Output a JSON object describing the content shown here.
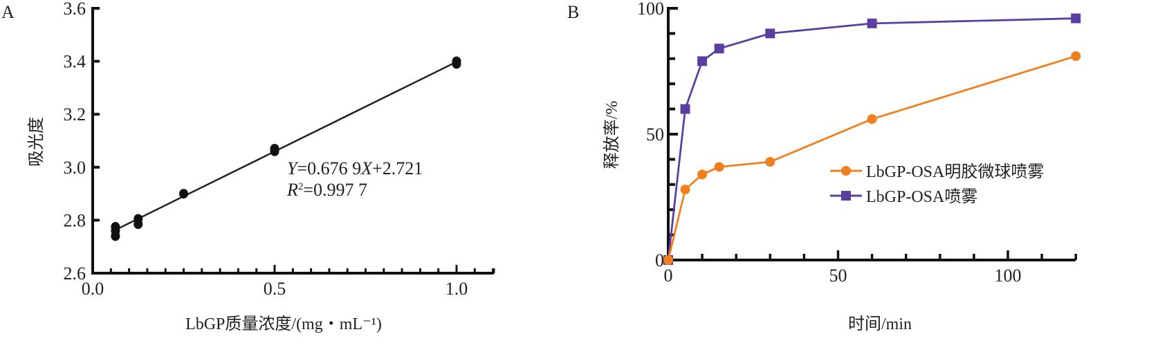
{
  "chart_data": [
    {
      "panel": "A",
      "type": "scatter",
      "title": "",
      "xlabel": "LbGP质量浓度/(mg・mL⁻¹)",
      "ylabel": "吸光度",
      "xlim": [
        0.0,
        1.1
      ],
      "ylim": [
        2.6,
        3.6
      ],
      "x_ticks": [
        "0.0",
        "0.5",
        "1.0"
      ],
      "x_tick_values": [
        0.0,
        0.5,
        1.0
      ],
      "x_minor_step": 0.05,
      "y_ticks": [
        "2.6",
        "2.8",
        "3.0",
        "3.2",
        "3.4",
        "3.6"
      ],
      "y_tick_values": [
        2.6,
        2.8,
        3.0,
        3.2,
        3.4,
        3.6
      ],
      "grid": false,
      "points": [
        {
          "x": 0.0625,
          "y": 2.775
        },
        {
          "x": 0.0625,
          "y": 2.76
        },
        {
          "x": 0.0625,
          "y": 2.74
        },
        {
          "x": 0.125,
          "y": 2.805
        },
        {
          "x": 0.125,
          "y": 2.785
        },
        {
          "x": 0.25,
          "y": 2.9
        },
        {
          "x": 0.5,
          "y": 3.07
        },
        {
          "x": 0.5,
          "y": 3.06
        },
        {
          "x": 1.0,
          "y": 3.4
        },
        {
          "x": 1.0,
          "y": 3.39
        }
      ],
      "fit": {
        "slope": 0.6769,
        "intercept": 2.721,
        "x_range": [
          0.0625,
          1.0
        ]
      },
      "annotations": {
        "equation_var_y": "Y",
        "equation_rest1": "=0.676 9",
        "equation_var_x": "X",
        "equation_rest2": "+2.721",
        "r2_var": "R",
        "r2_sup": "2",
        "r2_rest": "=0.997 7"
      },
      "color": "#111111"
    },
    {
      "panel": "B",
      "type": "line",
      "title": "",
      "xlabel": "时间/min",
      "ylabel": "释放率/%",
      "xlim": [
        0,
        120
      ],
      "ylim": [
        0,
        100
      ],
      "x_ticks": [
        "0",
        "50",
        "100"
      ],
      "x_tick_values": [
        0,
        50,
        100
      ],
      "x_minor_step": 10,
      "y_ticks": [
        "0",
        "50",
        "100"
      ],
      "y_tick_values": [
        0,
        50,
        100
      ],
      "y_minor_step": 10,
      "grid": false,
      "legend_position": "center-right",
      "x": [
        0,
        5,
        10,
        15,
        30,
        60,
        120
      ],
      "series": [
        {
          "name": "LbGP-OSA明胶微球喷雾",
          "marker": "circle",
          "color": "#f07f1e",
          "values": [
            0,
            28,
            34,
            37,
            39,
            56,
            81
          ]
        },
        {
          "name": "LbGP-OSA喷雾",
          "marker": "square",
          "color": "#5b3fa0",
          "values": [
            0,
            60,
            79,
            84,
            90,
            94,
            96
          ]
        }
      ]
    }
  ]
}
